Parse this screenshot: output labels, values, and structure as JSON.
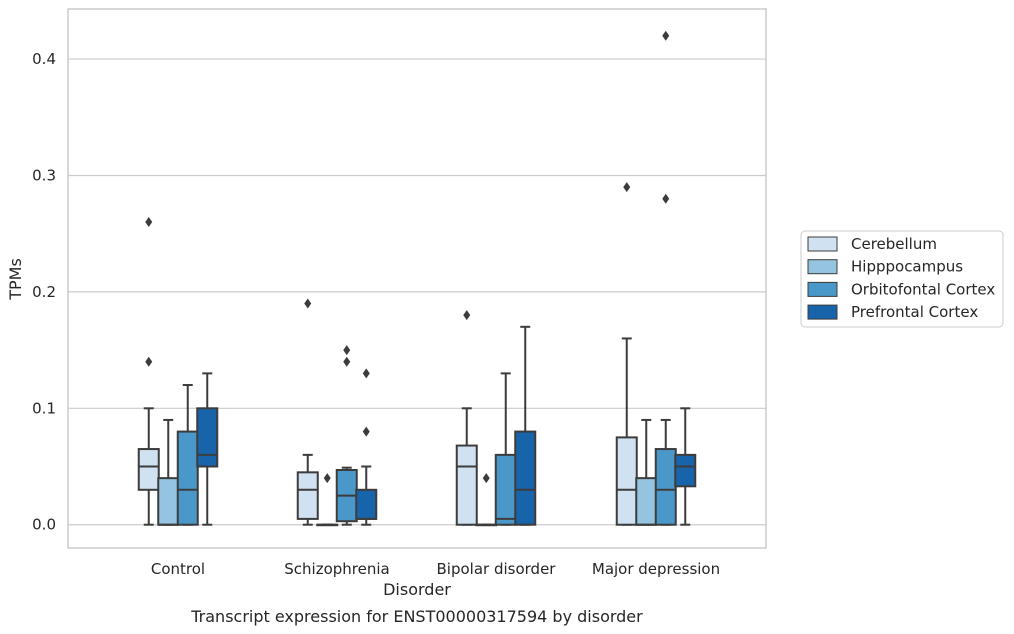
{
  "caption": "Transcript expression for ENST00000317594 by disorder",
  "chart_data": {
    "type": "box",
    "xlabel": "Disorder",
    "ylabel": "TPMs",
    "ylim": [
      -0.02,
      0.443
    ],
    "yticks": [
      0.0,
      0.1,
      0.2,
      0.3,
      0.4
    ],
    "ytick_labels": [
      "0.0",
      "0.1",
      "0.2",
      "0.3",
      "0.4"
    ],
    "grid": "horizontal",
    "legend_position": "right",
    "categories": [
      "Control",
      "Schizophrenia",
      "Bipolar disorder",
      "Major depression"
    ],
    "series": [
      {
        "name": "Cerebellum",
        "color": "#d0e1f2",
        "boxes": [
          {
            "whisker_low": 0.0,
            "q1": 0.03,
            "median": 0.05,
            "q3": 0.065,
            "whisker_high": 0.1,
            "outliers": [
              0.14,
              0.26
            ]
          },
          {
            "whisker_low": 0.0,
            "q1": 0.005,
            "median": 0.03,
            "q3": 0.045,
            "whisker_high": 0.06,
            "outliers": [
              0.19
            ]
          },
          {
            "whisker_low": 0.0,
            "q1": 0.0,
            "median": 0.05,
            "q3": 0.068,
            "whisker_high": 0.1,
            "outliers": [
              0.18
            ]
          },
          {
            "whisker_low": 0.0,
            "q1": 0.0,
            "median": 0.03,
            "q3": 0.075,
            "whisker_high": 0.16,
            "outliers": [
              0.29
            ]
          }
        ]
      },
      {
        "name": "Hipppocampus",
        "color": "#94c4df",
        "boxes": [
          {
            "whisker_low": 0.0,
            "q1": 0.0,
            "median": 0.0,
            "q3": 0.04,
            "whisker_high": 0.09,
            "outliers": []
          },
          {
            "whisker_low": 0.0,
            "q1": 0.0,
            "median": 0.0,
            "q3": 0.0,
            "whisker_high": 0.0,
            "outliers": [
              0.04
            ]
          },
          {
            "whisker_low": 0.0,
            "q1": 0.0,
            "median": 0.0,
            "q3": 0.0,
            "whisker_high": 0.0,
            "outliers": [
              0.04
            ]
          },
          {
            "whisker_low": 0.0,
            "q1": 0.0,
            "median": 0.0,
            "q3": 0.04,
            "whisker_high": 0.09,
            "outliers": []
          }
        ]
      },
      {
        "name": "Orbitofontal Cortex",
        "color": "#4a98c9",
        "boxes": [
          {
            "whisker_low": 0.0,
            "q1": 0.0,
            "median": 0.03,
            "q3": 0.08,
            "whisker_high": 0.12,
            "outliers": []
          },
          {
            "whisker_low": 0.0,
            "q1": 0.003,
            "median": 0.025,
            "q3": 0.047,
            "whisker_high": 0.049,
            "outliers": [
              0.14,
              0.15
            ]
          },
          {
            "whisker_low": 0.0,
            "q1": 0.0,
            "median": 0.005,
            "q3": 0.06,
            "whisker_high": 0.13,
            "outliers": []
          },
          {
            "whisker_low": 0.0,
            "q1": 0.0,
            "median": 0.03,
            "q3": 0.065,
            "whisker_high": 0.09,
            "outliers": [
              0.28,
              0.42
            ]
          }
        ]
      },
      {
        "name": "Prefrontal Cortex",
        "color": "#1764ab",
        "boxes": [
          {
            "whisker_low": 0.0,
            "q1": 0.05,
            "median": 0.06,
            "q3": 0.1,
            "whisker_high": 0.13,
            "outliers": []
          },
          {
            "whisker_low": 0.0,
            "q1": 0.005,
            "median": 0.005,
            "q3": 0.03,
            "whisker_high": 0.05,
            "outliers": [
              0.08,
              0.13
            ]
          },
          {
            "whisker_low": 0.0,
            "q1": 0.0,
            "median": 0.03,
            "q3": 0.08,
            "whisker_high": 0.17,
            "outliers": []
          },
          {
            "whisker_low": 0.0,
            "q1": 0.033,
            "median": 0.05,
            "q3": 0.06,
            "whisker_high": 0.1,
            "outliers": []
          }
        ]
      }
    ]
  }
}
